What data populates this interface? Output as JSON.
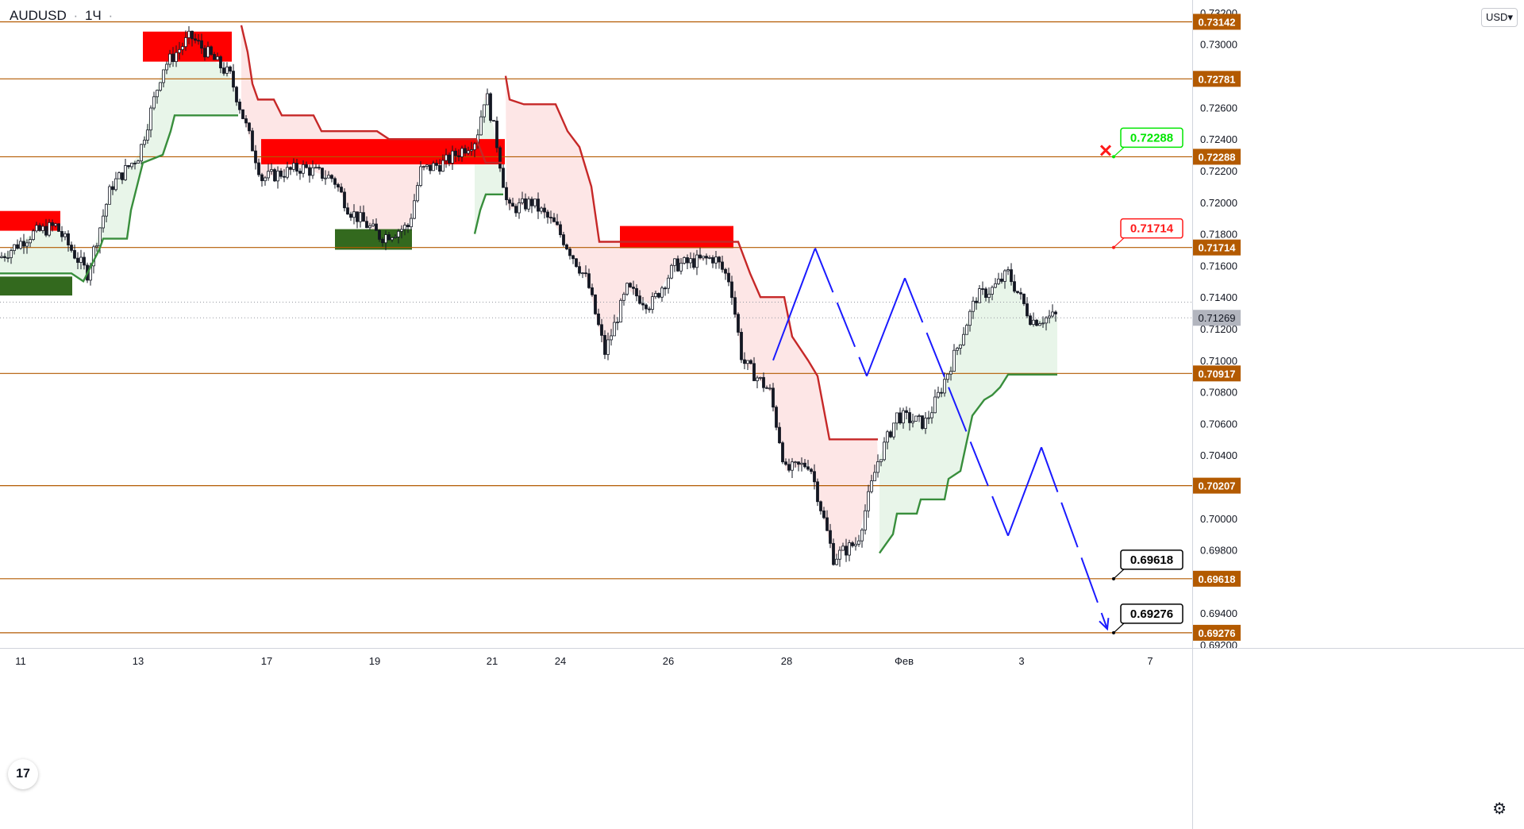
{
  "header": {
    "symbol": "AUDUSD",
    "separator": "·",
    "timeframe": "1Ч",
    "menu_glyph": "·",
    "currency_button": "USD▾"
  },
  "footer": {
    "logo_text": "17",
    "settings_glyph": "⚙"
  },
  "colors": {
    "background": "#ffffff",
    "level_line": "#b35a00",
    "level_label_bg": "#b35a00",
    "candle": "#131722",
    "supply_zone": "#ff0000",
    "demand_zone": "#33691e",
    "trail_bear": "#c62828",
    "trail_bull": "#388e3c",
    "fill_bear": "#fde6e6",
    "fill_bull": "#e8f5e9",
    "projection": "#1a1aff",
    "target_green": "#00e600",
    "target_red": "#ff1a1a",
    "target_black": "#000000",
    "price_label": "#b2b5be"
  },
  "chart_data": {
    "type": "candlestick",
    "symbol": "AUDUSD",
    "timeframe": "1Ч",
    "ylim": [
      0.6918,
      0.7328
    ],
    "x_ticks": [
      "11",
      "13",
      "17",
      "19",
      "21",
      "24",
      "26",
      "28",
      "Фев",
      "3",
      "7"
    ],
    "y_ticks": [
      "0.73200",
      "0.73000",
      "0.72800",
      "0.72600",
      "0.72400",
      "0.72200",
      "0.72000",
      "0.71800",
      "0.71600",
      "0.71400",
      "0.71200",
      "0.71000",
      "0.70800",
      "0.70600",
      "0.70400",
      "0.70200",
      "0.70000",
      "0.69800",
      "0.69600",
      "0.69400",
      "0.69200"
    ],
    "levels": [
      {
        "value": 0.73142,
        "label": "0.73142"
      },
      {
        "value": 0.72781,
        "label": "0.72781"
      },
      {
        "value": 0.72288,
        "label": "0.72288"
      },
      {
        "value": 0.71714,
        "label": "0.71714"
      },
      {
        "value": 0.70917,
        "label": "0.70917"
      },
      {
        "value": 0.70207,
        "label": "0.70207"
      },
      {
        "value": 0.69618,
        "label": "0.69618"
      },
      {
        "value": 0.69276,
        "label": "0.69276"
      }
    ],
    "current_price": {
      "value": 0.71269,
      "label": "0.71269"
    },
    "targets": [
      {
        "value": 0.72288,
        "label": "0.72288",
        "style": "green",
        "cancelled": true
      },
      {
        "value": 0.71714,
        "label": "0.71714",
        "style": "red",
        "cancelled": false
      },
      {
        "value": 0.69618,
        "label": "0.69618",
        "style": "black",
        "cancelled": false
      },
      {
        "value": 0.69276,
        "label": "0.69276",
        "style": "black",
        "cancelled": false
      }
    ],
    "anchors": [
      [
        0,
        0.7165
      ],
      [
        40,
        0.718
      ],
      [
        70,
        0.7185
      ],
      [
        110,
        0.7155
      ],
      [
        140,
        0.721
      ],
      [
        175,
        0.723
      ],
      [
        205,
        0.7285
      ],
      [
        240,
        0.7305
      ],
      [
        290,
        0.728
      ],
      [
        315,
        0.724
      ],
      [
        330,
        0.7215
      ],
      [
        380,
        0.7222
      ],
      [
        420,
        0.7215
      ],
      [
        440,
        0.7195
      ],
      [
        480,
        0.7178
      ],
      [
        515,
        0.7185
      ],
      [
        530,
        0.722
      ],
      [
        560,
        0.7225
      ],
      [
        600,
        0.724
      ],
      [
        612,
        0.727
      ],
      [
        625,
        0.724
      ],
      [
        640,
        0.7195
      ],
      [
        670,
        0.72
      ],
      [
        700,
        0.7185
      ],
      [
        740,
        0.715
      ],
      [
        762,
        0.7105
      ],
      [
        790,
        0.7145
      ],
      [
        820,
        0.7135
      ],
      [
        850,
        0.716
      ],
      [
        900,
        0.7165
      ],
      [
        920,
        0.715
      ],
      [
        935,
        0.71
      ],
      [
        970,
        0.708
      ],
      [
        990,
        0.703
      ],
      [
        1020,
        0.7035
      ],
      [
        1040,
        0.6995
      ],
      [
        1050,
        0.6975
      ],
      [
        1080,
        0.6985
      ],
      [
        1105,
        0.7035
      ],
      [
        1130,
        0.7065
      ],
      [
        1165,
        0.706
      ],
      [
        1180,
        0.7075
      ],
      [
        1200,
        0.71
      ],
      [
        1230,
        0.714
      ],
      [
        1250,
        0.7145
      ],
      [
        1270,
        0.7155
      ],
      [
        1300,
        0.7125
      ],
      [
        1330,
        0.7128
      ]
    ],
    "zones": [
      {
        "kind": "supply",
        "x1": 0,
        "x2": 76,
        "y1": 0.71945,
        "y2": 0.7182
      },
      {
        "kind": "demand",
        "x1": 0,
        "x2": 91,
        "y1": 0.7153,
        "y2": 0.7141
      },
      {
        "kind": "supply",
        "x1": 180,
        "x2": 292,
        "y1": 0.7308,
        "y2": 0.7289
      },
      {
        "kind": "supply",
        "x1": 329,
        "x2": 636,
        "y1": 0.724,
        "y2": 0.7224
      },
      {
        "kind": "demand",
        "x1": 422,
        "x2": 519,
        "y1": 0.7183,
        "y2": 0.717
      },
      {
        "kind": "supply",
        "x1": 781,
        "x2": 924,
        "y1": 0.7185,
        "y2": 0.7171
      }
    ],
    "trail_bear": [
      [
        [
          304,
          0.7312
        ],
        [
          312,
          0.7295
        ],
        [
          318,
          0.7275
        ],
        [
          325,
          0.7265
        ],
        [
          345,
          0.7265
        ],
        [
          355,
          0.7255
        ],
        [
          395,
          0.7255
        ],
        [
          405,
          0.7245
        ],
        [
          475,
          0.7245
        ],
        [
          490,
          0.724
        ],
        [
          600,
          0.724
        ],
        [
          612,
          0.7225
        ],
        [
          632,
          0.7225
        ]
      ],
      [
        [
          637,
          0.728
        ],
        [
          642,
          0.7265
        ],
        [
          660,
          0.7262
        ],
        [
          700,
          0.7262
        ],
        [
          715,
          0.7245
        ],
        [
          730,
          0.7235
        ],
        [
          745,
          0.721
        ],
        [
          755,
          0.7175
        ],
        [
          820,
          0.7175
        ],
        [
          930,
          0.7175
        ],
        [
          945,
          0.7155
        ],
        [
          958,
          0.714
        ],
        [
          988,
          0.714
        ],
        [
          998,
          0.7115
        ],
        [
          1018,
          0.71
        ],
        [
          1030,
          0.709
        ],
        [
          1045,
          0.705
        ],
        [
          1106,
          0.705
        ]
      ]
    ],
    "trail_bull": [
      [
        [
          0,
          0.7155
        ],
        [
          90,
          0.7155
        ],
        [
          105,
          0.715
        ],
        [
          115,
          0.716
        ],
        [
          125,
          0.717
        ],
        [
          130,
          0.7177
        ],
        [
          160,
          0.7177
        ],
        [
          165,
          0.7195
        ],
        [
          180,
          0.7225
        ],
        [
          205,
          0.723
        ],
        [
          215,
          0.7245
        ],
        [
          220,
          0.7255
        ],
        [
          300,
          0.7255
        ]
      ],
      [
        [
          598,
          0.718
        ],
        [
          605,
          0.7195
        ],
        [
          612,
          0.7205
        ],
        [
          634,
          0.7205
        ]
      ],
      [
        [
          1108,
          0.6978
        ],
        [
          1115,
          0.6983
        ],
        [
          1125,
          0.699
        ],
        [
          1130,
          0.7003
        ],
        [
          1155,
          0.7003
        ],
        [
          1160,
          0.7012
        ],
        [
          1190,
          0.7012
        ],
        [
          1195,
          0.7025
        ],
        [
          1210,
          0.703
        ],
        [
          1225,
          0.7065
        ],
        [
          1240,
          0.7075
        ],
        [
          1250,
          0.7078
        ],
        [
          1260,
          0.7083
        ],
        [
          1270,
          0.7091
        ],
        [
          1332,
          0.7091
        ]
      ]
    ],
    "bear_fill": [
      {
        "x1": 304,
        "x2": 632,
        "base": "trail"
      },
      {
        "x1": 637,
        "x2": 1106,
        "base": "trail"
      }
    ],
    "bull_fill": [
      {
        "x1": 0,
        "x2": 300
      },
      {
        "x1": 598,
        "x2": 634
      },
      {
        "x1": 1108,
        "x2": 1332
      }
    ],
    "projection_path": [
      [
        974,
        0.71
      ],
      [
        1027,
        0.7171
      ],
      [
        1092,
        0.709
      ],
      [
        1140,
        0.7152
      ],
      [
        1270,
        0.6989
      ],
      [
        1312,
        0.7045
      ],
      [
        1395,
        0.693
      ]
    ]
  }
}
